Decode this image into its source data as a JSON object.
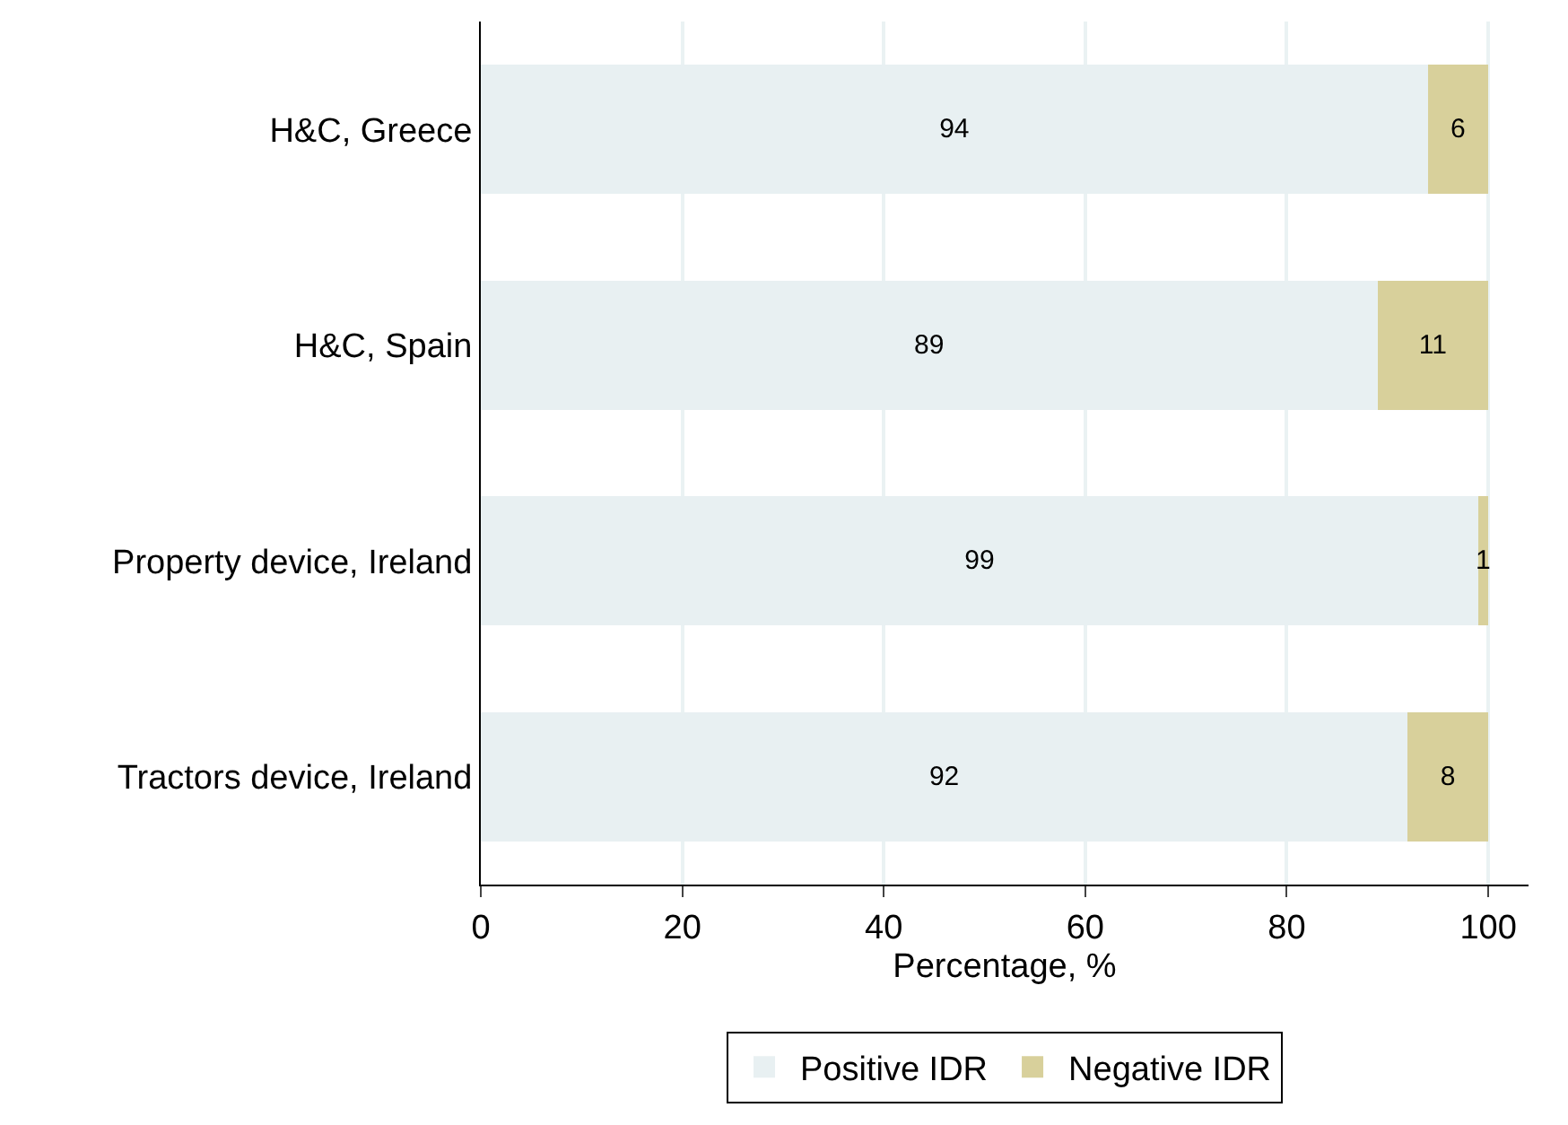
{
  "chart_data": {
    "type": "bar",
    "orientation": "horizontal",
    "stacked": true,
    "xlabel": "Percentage, %",
    "categories": [
      "H&C, Greece",
      "H&C, Spain",
      "Property device, Ireland",
      "Tractors device, Ireland"
    ],
    "series": [
      {
        "name": "Positive IDR",
        "color": "#e8f0f2",
        "values": [
          94,
          89,
          99,
          92
        ]
      },
      {
        "name": "Negative IDR",
        "color": "#d8d09b",
        "values": [
          6,
          11,
          1,
          8
        ]
      }
    ],
    "xlim": [
      0,
      104
    ],
    "xticks": [
      0,
      20,
      40,
      60,
      80,
      100
    ],
    "grid": "x",
    "legend": "bottom",
    "data_labels": true
  }
}
